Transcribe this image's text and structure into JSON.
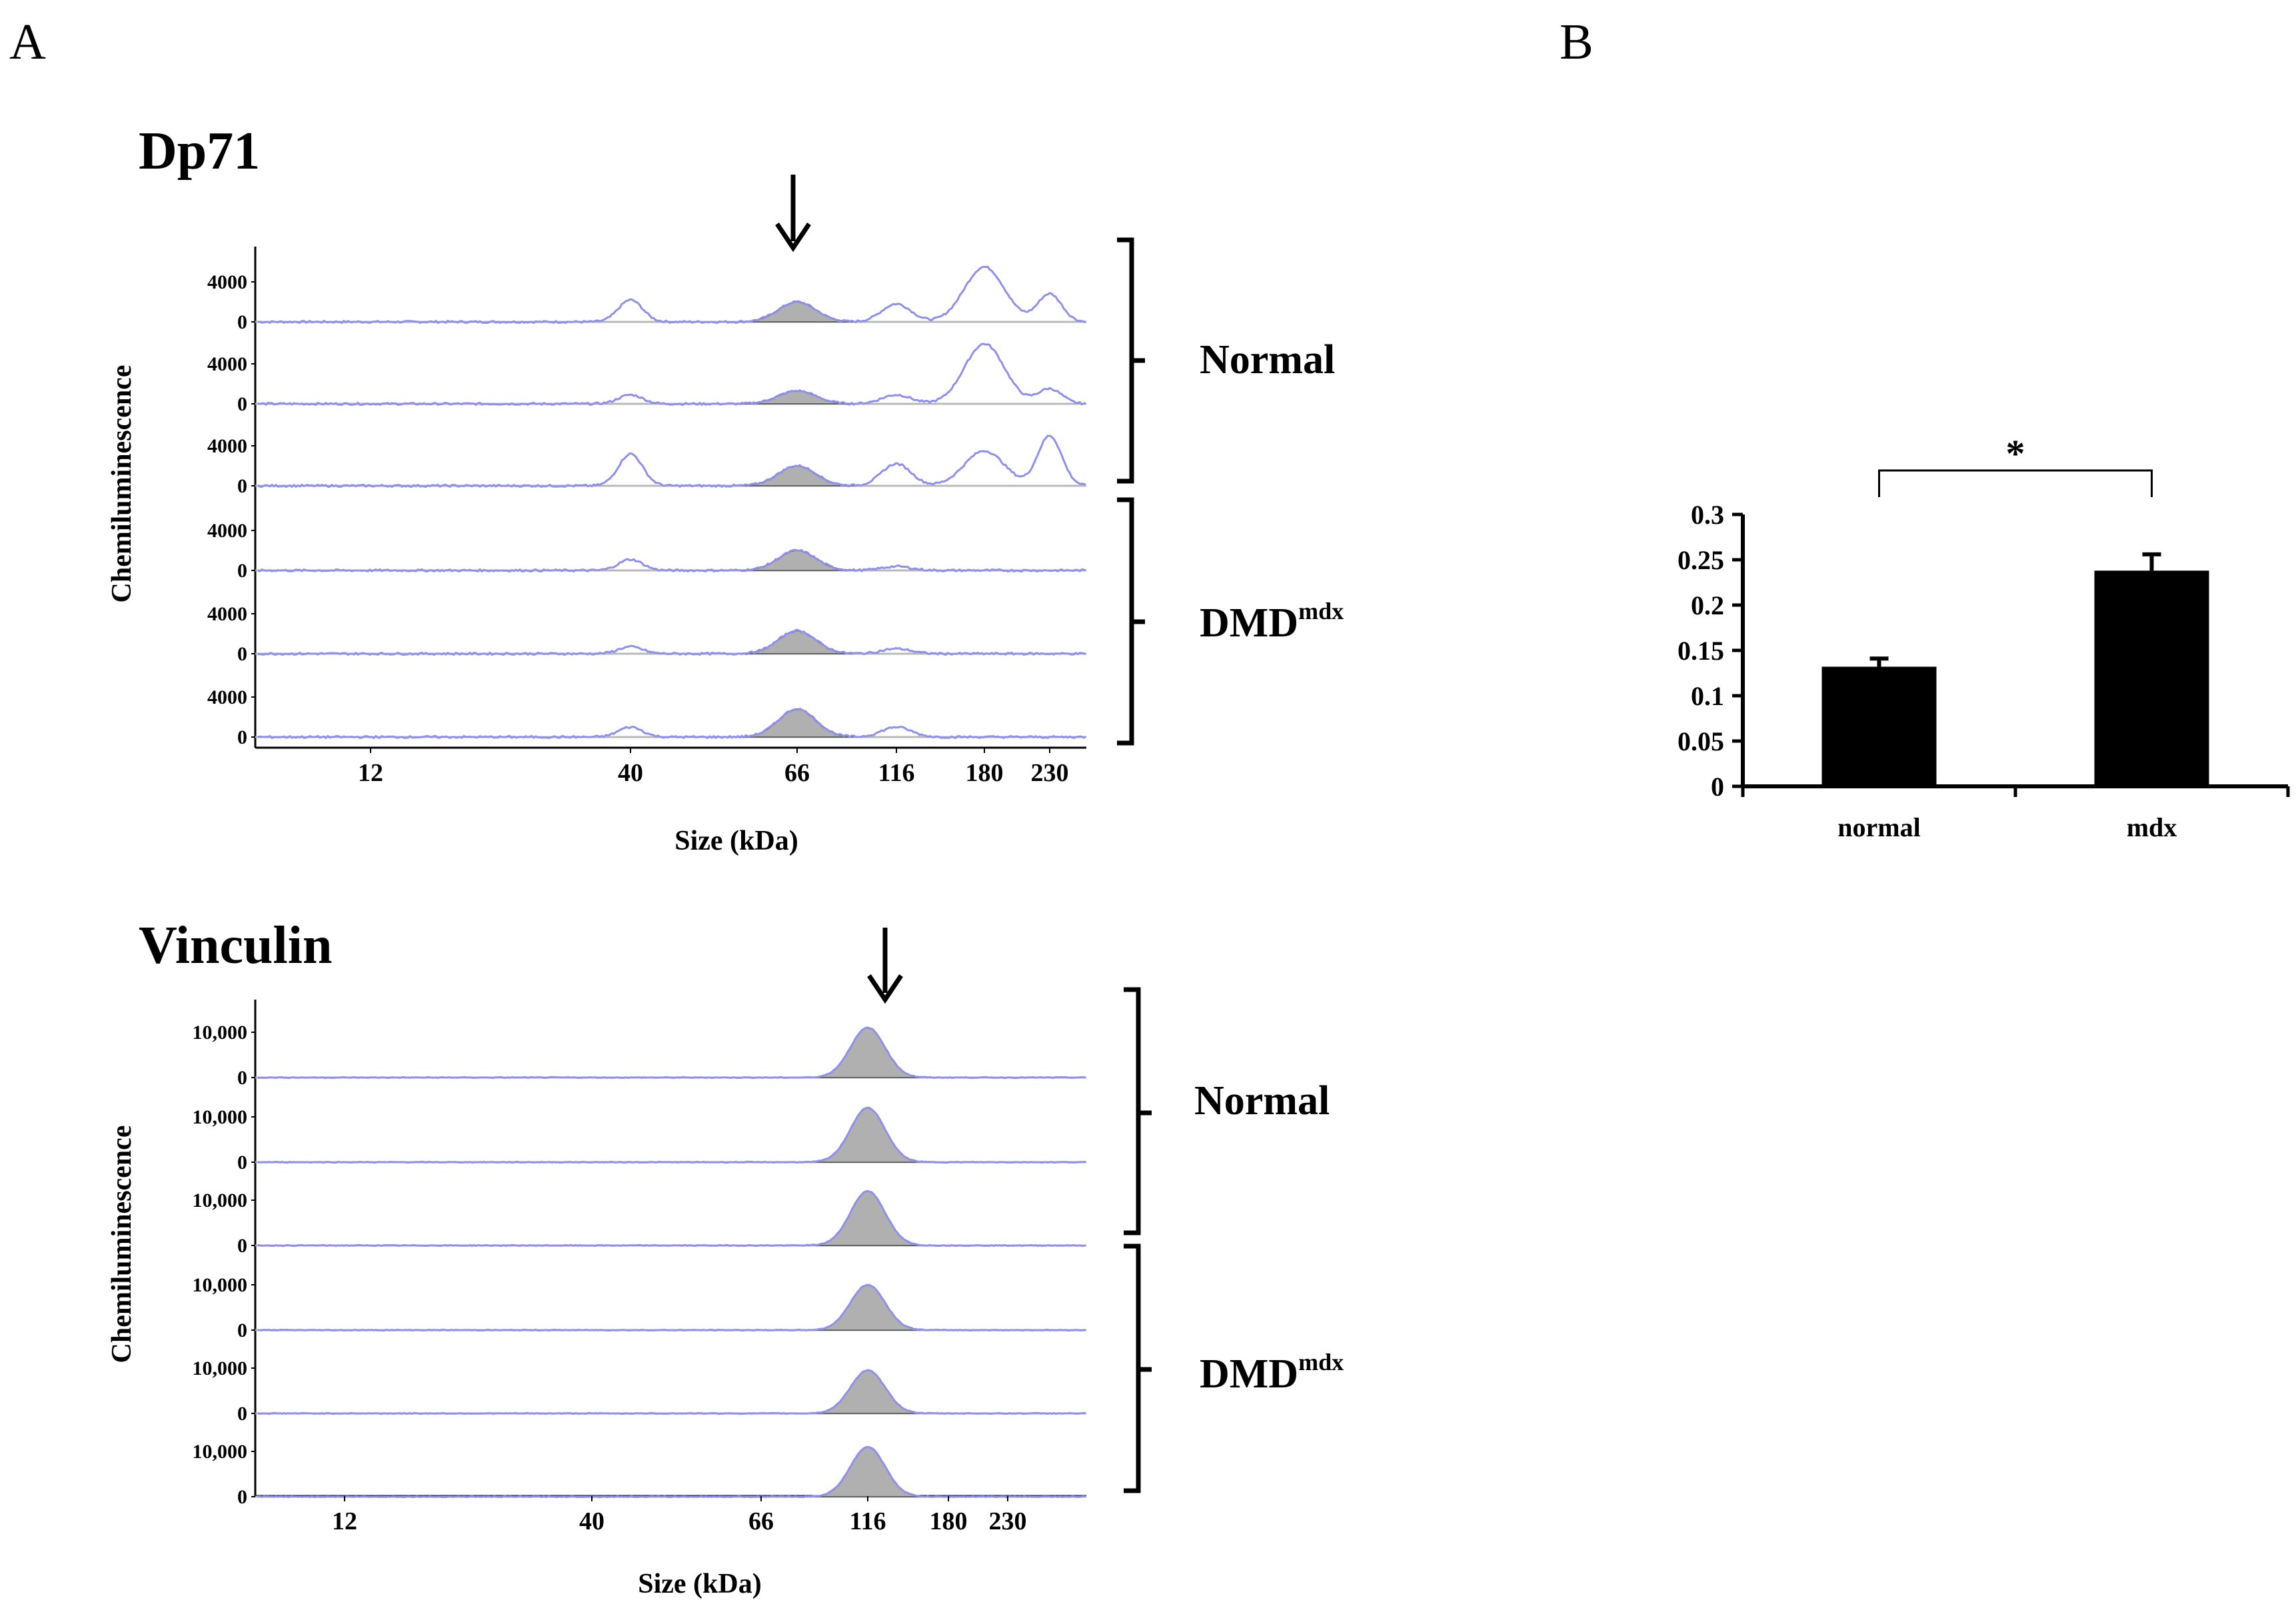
{
  "panel_labels": {
    "a": "A",
    "b": "B"
  },
  "chart_data": [
    {
      "type": "line",
      "title": "Dp71",
      "ylabel": "Chemiluminescence",
      "xlabel": "Size (kDa)",
      "x_ticks": [
        "12",
        "40",
        "66",
        "116",
        "180",
        "230"
      ],
      "y_tick_labels": [
        "4000",
        "0"
      ],
      "arrow_at_kda": "66",
      "lane_groups": [
        {
          "label": "Normal",
          "superscript": ""
        },
        {
          "label": "DMD",
          "superscript": "mdx"
        }
      ],
      "series": [
        {
          "group": "Normal",
          "values": {
            "peak_66": 2000,
            "peak_40": 2200,
            "peak_116": 1800,
            "peak_180": 5500,
            "peak_230": 2800
          }
        },
        {
          "group": "Normal",
          "values": {
            "peak_66": 1300,
            "peak_40": 900,
            "peak_116": 900,
            "peak_180": 6000,
            "peak_230": 1500
          }
        },
        {
          "group": "Normal",
          "values": {
            "peak_66": 2000,
            "peak_40": 3200,
            "peak_116": 2200,
            "peak_180": 3500,
            "peak_230": 5000
          }
        },
        {
          "group": "DMD",
          "values": {
            "peak_66": 2000,
            "peak_40": 1100,
            "peak_116": 400,
            "peak_180": 0,
            "peak_230": 0
          }
        },
        {
          "group": "DMD",
          "values": {
            "peak_66": 2300,
            "peak_40": 700,
            "peak_116": 500,
            "peak_180": 0,
            "peak_230": 0
          }
        },
        {
          "group": "DMD",
          "values": {
            "peak_66": 2800,
            "peak_40": 1000,
            "peak_116": 1000,
            "peak_180": 0,
            "peak_230": 0
          }
        }
      ],
      "colors": {
        "trace": "#8f8ff0",
        "fill": "#b0b0b0",
        "baseline": "#b8b8b8"
      }
    },
    {
      "type": "line",
      "title": "Vinculin",
      "ylabel": "Chemiluminescence",
      "xlabel": "Size (kDa)",
      "x_ticks": [
        "12",
        "40",
        "66",
        "116",
        "180",
        "230"
      ],
      "y_tick_labels": [
        "10,000",
        "0"
      ],
      "arrow_at_kda": "116",
      "lane_groups": [
        {
          "label": "Normal",
          "superscript": ""
        },
        {
          "label": "DMD",
          "superscript": "mdx"
        }
      ],
      "series": [
        {
          "group": "Normal",
          "values": {
            "peak_116": 11000
          }
        },
        {
          "group": "Normal",
          "values": {
            "peak_116": 12000
          }
        },
        {
          "group": "Normal",
          "values": {
            "peak_116": 12000
          }
        },
        {
          "group": "DMD",
          "values": {
            "peak_116": 10000
          }
        },
        {
          "group": "DMD",
          "values": {
            "peak_116": 9500
          }
        },
        {
          "group": "DMD",
          "values": {
            "peak_116": 11000
          }
        }
      ],
      "colors": {
        "trace": "#8f8ff0",
        "fill": "#b0b0b0",
        "baseline": "#b8b8b8"
      }
    },
    {
      "type": "bar",
      "title": "",
      "xlabel": "",
      "ylabel": "",
      "categories": [
        "normal",
        "mdx"
      ],
      "values": [
        0.132,
        0.238
      ],
      "errors": [
        0.009,
        0.018
      ],
      "ylim": [
        0,
        0.3
      ],
      "y_ticks": [
        "0.3",
        "0.25",
        "0.2",
        "0.15",
        "0.1",
        "0.05",
        "0"
      ],
      "significance": "*",
      "colors": {
        "bar": "#000000"
      }
    }
  ]
}
